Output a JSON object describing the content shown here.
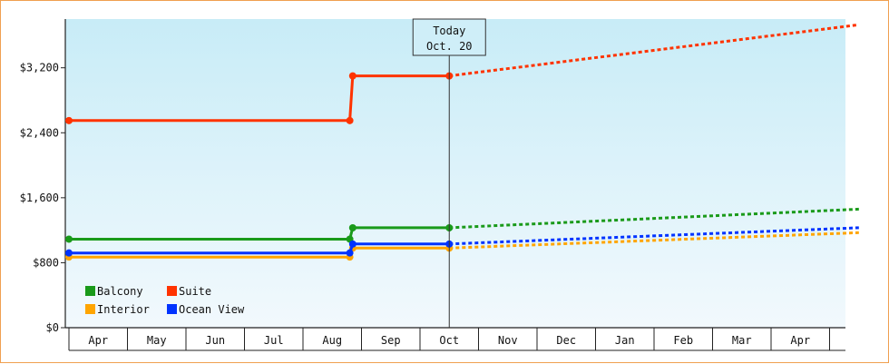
{
  "chart_data": {
    "type": "line",
    "title": "",
    "xlabel": "",
    "ylabel": "",
    "ylim": [
      0,
      3800
    ],
    "yticks": [
      0,
      800,
      1600,
      2400,
      3200
    ],
    "ytick_labels": [
      "$0",
      "$800",
      "$1,600",
      "$2,400",
      "$3,200"
    ],
    "months": [
      "Apr",
      "May",
      "Jun",
      "Jul",
      "Aug",
      "Sep",
      "Oct",
      "Nov",
      "Dec",
      "Jan",
      "Feb",
      "Mar",
      "Apr"
    ],
    "today": {
      "label_line1": "Today",
      "label_line2": "Oct. 20",
      "x": 6.5
    },
    "series": [
      {
        "name": "Balcony",
        "color": "#1a9a1a",
        "historical": [
          [
            0,
            1090
          ],
          [
            4.8,
            1090
          ],
          [
            4.85,
            1230
          ],
          [
            6.5,
            1230
          ]
        ],
        "forecast": [
          [
            6.5,
            1230
          ],
          [
            13.5,
            1460
          ]
        ]
      },
      {
        "name": "Suite",
        "color": "#ff3300",
        "historical": [
          [
            0,
            2550
          ],
          [
            4.8,
            2550
          ],
          [
            4.85,
            3100
          ],
          [
            6.5,
            3100
          ]
        ],
        "forecast": [
          [
            6.5,
            3100
          ],
          [
            13.5,
            3730
          ]
        ]
      },
      {
        "name": "Interior",
        "color": "#ffa500",
        "historical": [
          [
            0,
            870
          ],
          [
            4.8,
            870
          ],
          [
            4.85,
            980
          ],
          [
            6.5,
            980
          ]
        ],
        "forecast": [
          [
            6.5,
            980
          ],
          [
            13.5,
            1170
          ]
        ]
      },
      {
        "name": "Ocean View",
        "color": "#0033ff",
        "historical": [
          [
            0,
            920
          ],
          [
            4.8,
            920
          ],
          [
            4.85,
            1030
          ],
          [
            6.5,
            1030
          ]
        ],
        "forecast": [
          [
            6.5,
            1030
          ],
          [
            13.5,
            1230
          ]
        ]
      }
    ],
    "legend": {
      "position": "bottom-left"
    },
    "background": {
      "top": "#c8ecf7",
      "bottom": "#f2f9fd"
    }
  }
}
